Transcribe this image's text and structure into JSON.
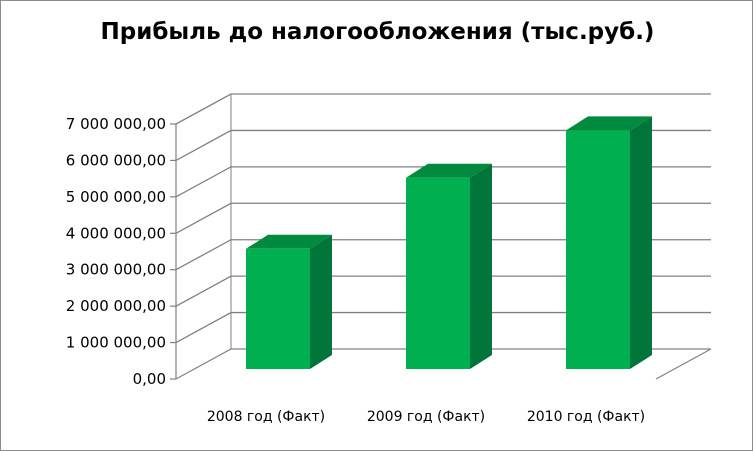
{
  "chart_data": {
    "type": "bar",
    "title": "Прибыль до налогообложения (тыс.руб.)",
    "categories": [
      "2008 год (Факт)",
      "2009 год  (Факт)",
      "2010 год  (Факт)"
    ],
    "series": [
      {
        "values": [
          3300000,
          5250000,
          6550000
        ]
      }
    ],
    "ylim": [
      0,
      7000000
    ],
    "yticks": [
      0,
      1000000,
      2000000,
      3000000,
      4000000,
      5000000,
      6000000,
      7000000
    ],
    "ytick_labels": [
      "0,00",
      "1 000 000,00",
      "2 000 000,00",
      "3 000 000,00",
      "4 000 000,00",
      "5 000 000,00",
      "6 000 000,00",
      "7 000 000,00"
    ],
    "xlabel": "",
    "ylabel": "",
    "grid": true,
    "style": "3d",
    "colors": {
      "bar_front": "#00b050",
      "bar_side": "#00753a",
      "bar_top": "#008a3f",
      "grid": "#808080"
    }
  }
}
